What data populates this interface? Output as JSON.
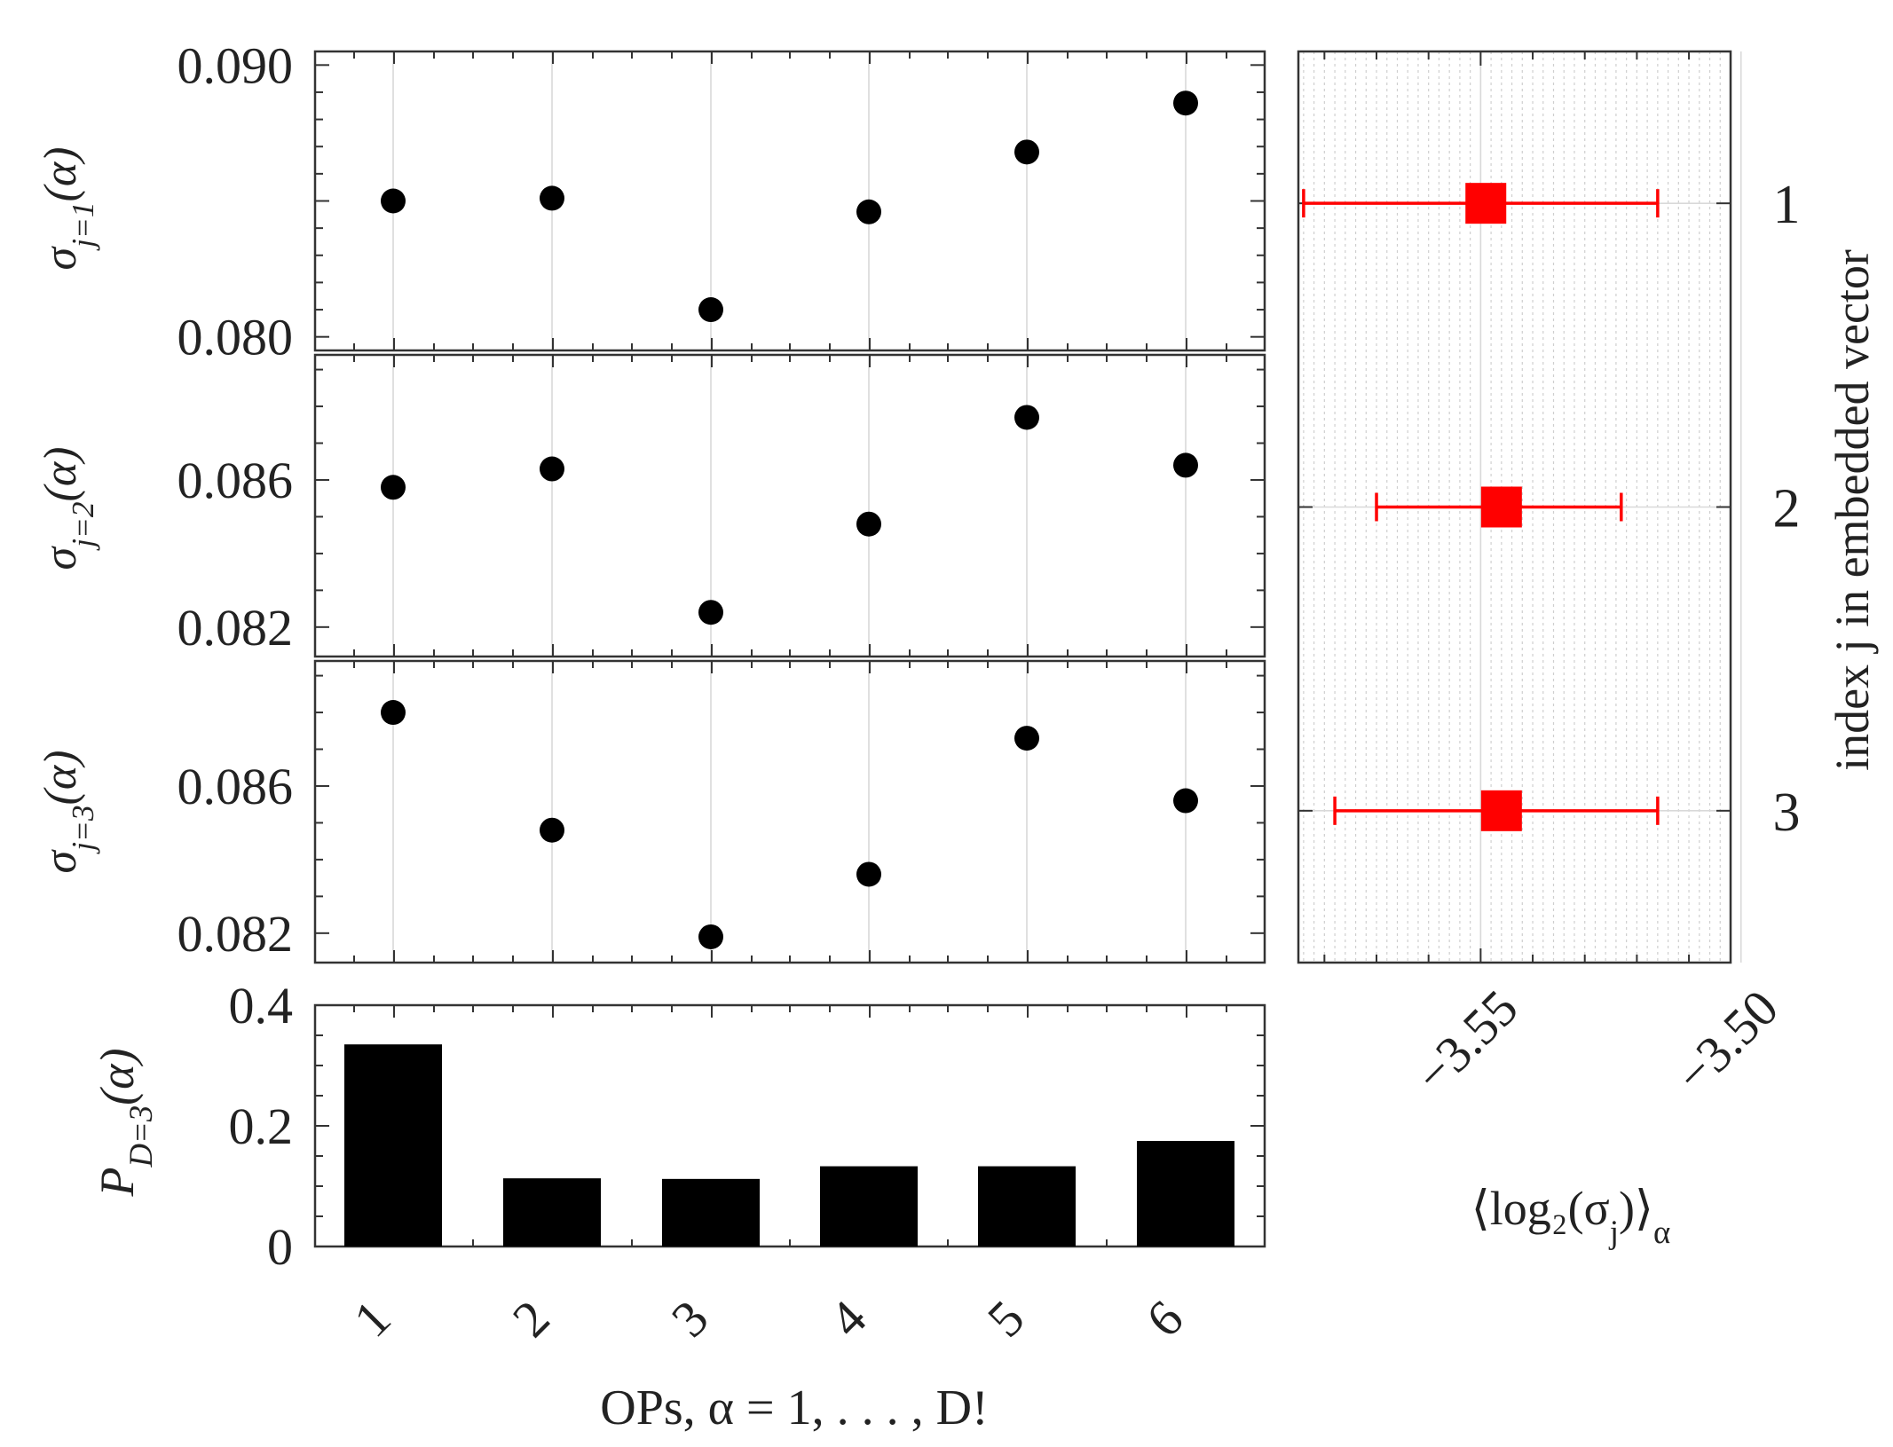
{
  "chart_data": [
    {
      "type": "scatter",
      "panel": "sigma-1",
      "ylabel": "σ_{j=1}(α)",
      "x": [
        1,
        2,
        3,
        4,
        5,
        6
      ],
      "values": [
        0.085,
        0.0851,
        0.081,
        0.0846,
        0.0868,
        0.0886
      ],
      "ylim": [
        0.0795,
        0.0905
      ],
      "yticks": [
        "0.080",
        "0.090"
      ],
      "ytick_values": [
        0.08,
        0.09
      ],
      "grid": "vertical",
      "marker_color": "#000000"
    },
    {
      "type": "scatter",
      "panel": "sigma-2",
      "ylabel": "σ_{j=2}(α)",
      "x": [
        1,
        2,
        3,
        4,
        5,
        6
      ],
      "values": [
        0.0858,
        0.0863,
        0.0824,
        0.0848,
        0.0877,
        0.0864
      ],
      "ylim": [
        0.0812,
        0.0894
      ],
      "yticks": [
        "0.082",
        "0.086"
      ],
      "ytick_values": [
        0.082,
        0.086
      ],
      "grid": "vertical",
      "marker_color": "#000000"
    },
    {
      "type": "scatter",
      "panel": "sigma-3",
      "ylabel": "σ_{j=3}(α)",
      "x": [
        1,
        2,
        3,
        4,
        5,
        6
      ],
      "values": [
        0.088,
        0.0848,
        0.0819,
        0.0836,
        0.0873,
        0.0856
      ],
      "ylim": [
        0.0812,
        0.0894
      ],
      "yticks": [
        "0.082",
        "0.086"
      ],
      "ytick_values": [
        0.082,
        0.086
      ],
      "grid": "vertical",
      "marker_color": "#000000"
    },
    {
      "type": "bar",
      "panel": "probabilities",
      "ylabel": "P_{D=3}(α)",
      "xlabel": "OPs, α = 1, . . . , D!",
      "categories": [
        "1",
        "2",
        "3",
        "4",
        "5",
        "6"
      ],
      "values": [
        0.335,
        0.113,
        0.112,
        0.133,
        0.133,
        0.175
      ],
      "ylim": [
        0,
        0.4
      ],
      "yticks": [
        "0",
        "0.2",
        "0.4"
      ],
      "ytick_values": [
        0,
        0.2,
        0.4
      ],
      "bar_color": "#000000"
    },
    {
      "type": "scatter",
      "panel": "mean-log2-sigma",
      "xlabel": "⟨log₂(σ_j)⟩_α",
      "ylabel": "index j in embedded vector",
      "series": [
        {
          "y": [
            1,
            2,
            3
          ],
          "x": [
            -3.549,
            -3.546,
            -3.546
          ],
          "xerr_low": [
            -3.584,
            -3.57,
            -3.578
          ],
          "xerr_high": [
            -3.516,
            -3.523,
            -3.516
          ]
        }
      ],
      "xlim": [
        -3.585,
        -3.502
      ],
      "xticks": [
        "−3.55",
        "−3.50"
      ],
      "xtick_values": [
        -3.55,
        -3.5
      ],
      "yticks": [
        "1",
        "2",
        "3"
      ],
      "ytick_values": [
        1,
        2,
        3
      ],
      "ylim": [
        0.5,
        3.5
      ],
      "grid": "minor vertical dotted, major horizontal",
      "marker_color": "#ff0000"
    }
  ]
}
